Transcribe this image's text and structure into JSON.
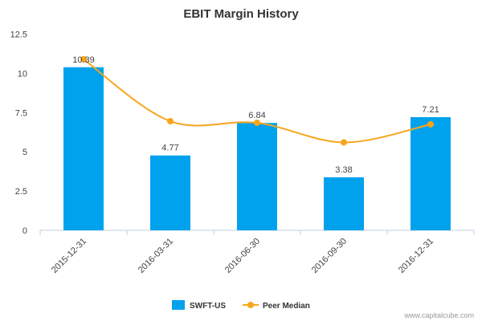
{
  "chart_data": {
    "type": "bar",
    "title": "EBIT Margin History",
    "categories": [
      "2015-12-31",
      "2016-03-31",
      "2016-06-30",
      "2016-09-30",
      "2016-12-31"
    ],
    "series": [
      {
        "name": "SWFT-US",
        "type": "bar",
        "values": [
          10.39,
          4.77,
          6.84,
          3.38,
          7.21
        ],
        "data_labels": [
          "10.39",
          "4.77",
          "6.84",
          "3.38",
          "7.21"
        ],
        "color": "#00a2ed"
      },
      {
        "name": "Peer Median",
        "type": "line",
        "smooth": true,
        "values": [
          10.9,
          6.95,
          6.85,
          5.6,
          6.75
        ],
        "color": "#f7a51c"
      }
    ],
    "yticks": [
      "0",
      "2.5",
      "5",
      "7.5",
      "10",
      "12.5"
    ],
    "ylim": [
      0,
      12.5
    ],
    "grid": false,
    "legend": "bottom-center"
  },
  "credit": "www.capitalcube.com"
}
